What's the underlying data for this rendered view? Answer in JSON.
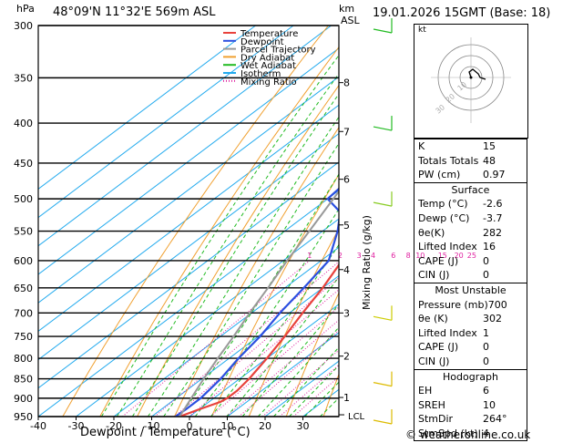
{
  "header": {
    "pressure_unit": "hPa",
    "location": "48°09'N  11°32'E  569m  ASL",
    "height_unit": "km",
    "height_unit2": "ASL",
    "datetime": "19.01.2026  15GMT  (Base: 18)"
  },
  "legend": [
    {
      "label": "Temperature",
      "color": "#e8423c",
      "style": "solid"
    },
    {
      "label": "Dewpoint",
      "color": "#2b4fe0",
      "style": "solid"
    },
    {
      "label": "Parcel Trajectory",
      "color": "#999999",
      "style": "solid"
    },
    {
      "label": "Dry Adiabat",
      "color": "#f0a030",
      "style": "solid"
    },
    {
      "label": "Wet Adiabat",
      "color": "#22bb22",
      "style": "solid"
    },
    {
      "label": "Isotherm",
      "color": "#22aaee",
      "style": "solid"
    },
    {
      "label": "Mixing Ratio",
      "color": "#e020a0",
      "style": "dotted"
    }
  ],
  "chart_data": {
    "type": "line",
    "title": "48°09'N  11°32'E  569m  ASL",
    "xlabel": "Dewpoint / Temperature (°C)",
    "ylabel": "hPa",
    "secondary_ylabel": "km ASL",
    "mixing_ratio_label": "Mixing Ratio (g/kg)",
    "xlim": [
      -40,
      40
    ],
    "ylim": [
      950,
      300
    ],
    "pressure_levels": [
      300,
      350,
      400,
      450,
      500,
      550,
      600,
      650,
      700,
      750,
      800,
      850,
      900,
      950
    ],
    "x_ticks": [
      -40,
      -30,
      -20,
      -10,
      0,
      10,
      20,
      30
    ],
    "km_ticks": [
      {
        "label": "8",
        "p": 355
      },
      {
        "label": "7",
        "p": 410
      },
      {
        "label": "6",
        "p": 472
      },
      {
        "label": "5",
        "p": 540
      },
      {
        "label": "4",
        "p": 616
      },
      {
        "label": "3",
        "p": 700
      },
      {
        "label": "2",
        "p": 795
      },
      {
        "label": "1",
        "p": 898
      }
    ],
    "lcl_label": "LCL",
    "lcl_p": 945,
    "mixing_ratio_values": [
      "1",
      "2",
      "3",
      "4",
      "6",
      "8",
      "10",
      "15",
      "20",
      "25"
    ],
    "series": [
      {
        "name": "Temperature",
        "color": "#e8423c",
        "points": [
          [
            950,
            -2.6
          ],
          [
            930,
            0
          ],
          [
            910,
            3
          ],
          [
            900,
            3.5
          ],
          [
            880,
            3.5
          ],
          [
            850,
            2.5
          ],
          [
            800,
            0
          ],
          [
            750,
            -3
          ],
          [
            700,
            -6.5
          ],
          [
            650,
            -10
          ],
          [
            600,
            -14.5
          ],
          [
            550,
            -19
          ],
          [
            500,
            -24
          ],
          [
            450,
            -30
          ],
          [
            400,
            -36
          ],
          [
            350,
            -43
          ],
          [
            300,
            -51
          ]
        ]
      },
      {
        "name": "Dewpoint",
        "color": "#2b4fe0",
        "points": [
          [
            950,
            -3.7
          ],
          [
            930,
            -3.5
          ],
          [
            900,
            -3.5
          ],
          [
            850,
            -5
          ],
          [
            800,
            -7.5
          ],
          [
            750,
            -9.5
          ],
          [
            700,
            -12.5
          ],
          [
            650,
            -15
          ],
          [
            600,
            -18
          ],
          [
            550,
            -26
          ],
          [
            520,
            -32
          ],
          [
            500,
            -40
          ],
          [
            450,
            -42
          ],
          [
            400,
            -48
          ],
          [
            350,
            -55
          ],
          [
            300,
            -60
          ]
        ]
      },
      {
        "name": "Parcel Trajectory",
        "color": "#999999",
        "points": [
          [
            950,
            -2.6
          ],
          [
            900,
            -6
          ],
          [
            850,
            -9.5
          ],
          [
            800,
            -13
          ],
          [
            750,
            -16.5
          ],
          [
            700,
            -20.5
          ],
          [
            650,
            -24.5
          ],
          [
            600,
            -29
          ],
          [
            550,
            -33.5
          ],
          [
            500,
            -38.5
          ],
          [
            450,
            -44
          ],
          [
            400,
            -50.5
          ],
          [
            350,
            -58
          ],
          [
            300,
            -66
          ]
        ]
      }
    ]
  },
  "hodograph": {
    "label": "kt",
    "ring_labels": [
      "10",
      "20",
      "30"
    ]
  },
  "indices": {
    "basic": [
      {
        "k": "K",
        "v": "15"
      },
      {
        "k": "Totals Totals",
        "v": "48"
      },
      {
        "k": "PW (cm)",
        "v": "0.97"
      }
    ],
    "surface": {
      "title": "Surface",
      "rows": [
        {
          "k": "Temp (°C)",
          "v": "-2.6"
        },
        {
          "k": "Dewp (°C)",
          "v": "-3.7"
        },
        {
          "k": "θe(K)",
          "v": "282"
        },
        {
          "k": "Lifted Index",
          "v": "16"
        },
        {
          "k": "CAPE (J)",
          "v": "0"
        },
        {
          "k": "CIN (J)",
          "v": "0"
        }
      ]
    },
    "most_unstable": {
      "title": "Most Unstable",
      "rows": [
        {
          "k": "Pressure (mb)",
          "v": "700"
        },
        {
          "k": "θe (K)",
          "v": "302"
        },
        {
          "k": "Lifted Index",
          "v": "1"
        },
        {
          "k": "CAPE (J)",
          "v": "0"
        },
        {
          "k": "CIN (J)",
          "v": "0"
        }
      ]
    },
    "hodograph": {
      "title": "Hodograph",
      "rows": [
        {
          "k": "EH",
          "v": "6"
        },
        {
          "k": "SREH",
          "v": "10"
        },
        {
          "k": "StmDir",
          "v": "264°"
        },
        {
          "k": "StmSpd (kt)",
          "v": "4"
        }
      ]
    }
  },
  "credit": "© weatheronline.co.uk"
}
